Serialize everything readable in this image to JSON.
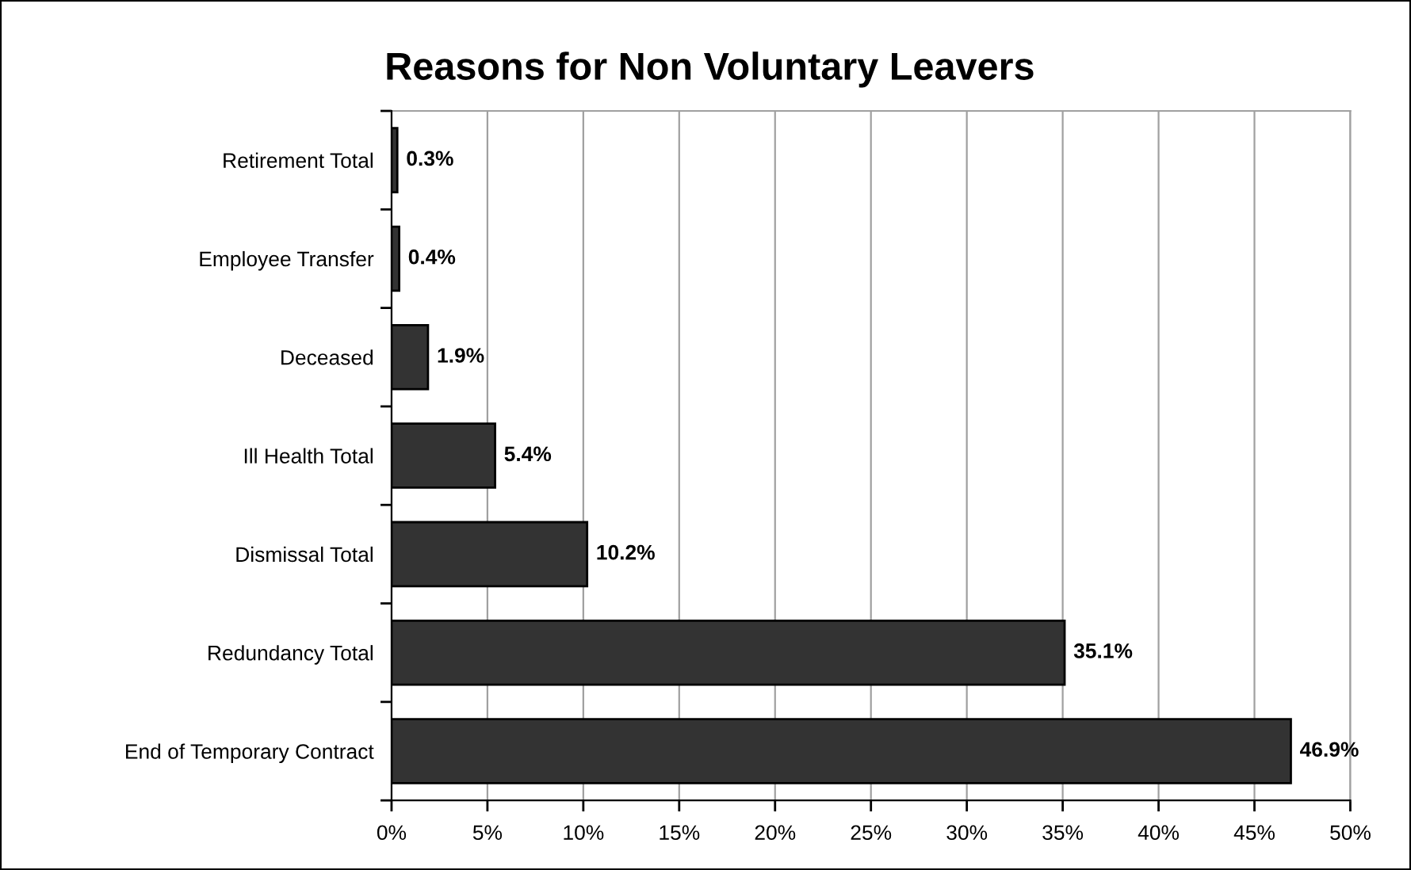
{
  "chart_data": {
    "type": "bar",
    "orientation": "horizontal",
    "title": "Reasons for Non Voluntary Leavers",
    "categories": [
      "Retirement Total",
      "Employee Transfer",
      "Deceased",
      "Ill Health Total",
      "Dismissal Total",
      "Redundancy Total",
      "End of Temporary Contract"
    ],
    "values": [
      0.3,
      0.4,
      1.9,
      5.4,
      10.2,
      35.1,
      46.9
    ],
    "value_labels": [
      "0.3%",
      "0.4%",
      "1.9%",
      "5.4%",
      "10.2%",
      "35.1%",
      "46.9%"
    ],
    "color": "#333333",
    "xlim": [
      0,
      50
    ],
    "xticks": [
      {
        "value": 0,
        "label": "0%"
      },
      {
        "value": 5,
        "label": "5%"
      },
      {
        "value": 10,
        "label": "10%"
      },
      {
        "value": 15,
        "label": "15%"
      },
      {
        "value": 20,
        "label": "20%"
      },
      {
        "value": 25,
        "label": "25%"
      },
      {
        "value": 30,
        "label": "30%"
      },
      {
        "value": 35,
        "label": "35%"
      },
      {
        "value": 40,
        "label": "40%"
      },
      {
        "value": 45,
        "label": "45%"
      },
      {
        "value": 50,
        "label": "50%"
      }
    ],
    "grid": "x",
    "legend": false
  }
}
